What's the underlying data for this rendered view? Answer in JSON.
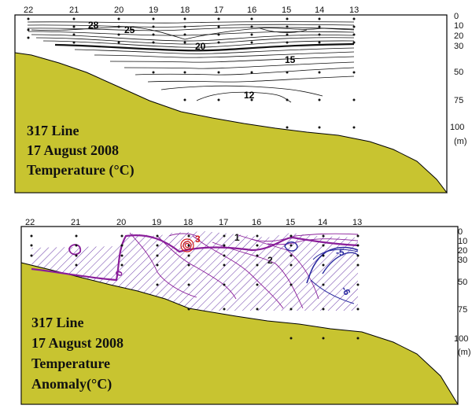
{
  "colors": {
    "seafloor": "#c8c430",
    "frame": "#000000",
    "temp_contour": "#111111",
    "anomaly_purple": "#8a1e9a",
    "anomaly_blue": "#2a2aa0",
    "anomaly_red": "#d11a1a",
    "hatch": "#6a3aa8"
  },
  "top_panel": {
    "stations": [
      "22",
      "21",
      "20",
      "19",
      "18",
      "17",
      "16",
      "15",
      "14",
      "13"
    ],
    "depths": [
      "0",
      "10",
      "20",
      "30",
      "50",
      "75",
      "100"
    ],
    "depth_unit": "(m)",
    "contour_labels": [
      "28",
      "25",
      "20",
      "15",
      "12"
    ],
    "caption": {
      "line1": "317 Line",
      "line2": "17 August 2008",
      "line3": "Temperature (°C)"
    }
  },
  "bottom_panel": {
    "stations": [
      "22",
      "21",
      "20",
      "19",
      "18",
      "17",
      "16",
      "15",
      "14",
      "13"
    ],
    "depths": [
      "0",
      "10",
      "20",
      "30",
      "50",
      "75",
      "100"
    ],
    "depth_unit": "(m)",
    "contour_labels": [
      "0",
      "3",
      "1",
      "2",
      "-5",
      "-6"
    ],
    "caption": {
      "line1": "317 Line",
      "line2": "17 August 2008",
      "line3": "Temperature",
      "line4": "Anomaly(°C)"
    }
  }
}
